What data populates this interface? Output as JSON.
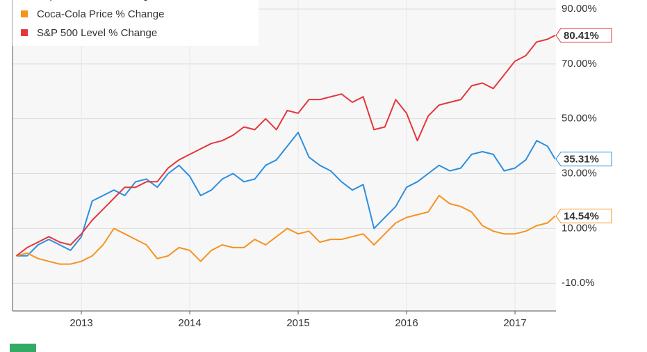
{
  "chart_data": {
    "type": "line",
    "x": [
      2012.4,
      2012.5,
      2012.6,
      2012.7,
      2012.8,
      2012.9,
      2013.0,
      2013.1,
      2013.2,
      2013.3,
      2013.4,
      2013.5,
      2013.6,
      2013.7,
      2013.8,
      2013.9,
      2014.0,
      2014.1,
      2014.2,
      2014.3,
      2014.4,
      2014.5,
      2014.6,
      2014.7,
      2014.8,
      2014.9,
      2015.0,
      2015.1,
      2015.2,
      2015.3,
      2015.4,
      2015.5,
      2015.6,
      2015.7,
      2015.8,
      2015.9,
      2016.0,
      2016.1,
      2016.2,
      2016.3,
      2016.4,
      2016.5,
      2016.6,
      2016.7,
      2016.8,
      2016.9,
      2017.0,
      2017.1,
      2017.2,
      2017.3,
      2017.37
    ],
    "series": [
      {
        "name": "PepsiCo Price % Change",
        "color": "#2b8fe0",
        "values": [
          0,
          0,
          4,
          6,
          4,
          2,
          7,
          20,
          22,
          24,
          22,
          27,
          28,
          25,
          30,
          33,
          29,
          22,
          24,
          28,
          30,
          27,
          28,
          33,
          35,
          40,
          45,
          36,
          33,
          31,
          27,
          24,
          26,
          10,
          14,
          18,
          25,
          27,
          30,
          33,
          31,
          32,
          37,
          38,
          37,
          31,
          32,
          35,
          42,
          40,
          35.31
        ],
        "value_labels": [
          null,
          null,
          null,
          null,
          null,
          null,
          null,
          null,
          null,
          null,
          null,
          null,
          null,
          null,
          null,
          null,
          null,
          null,
          null,
          null,
          null,
          null,
          null,
          null,
          null,
          null,
          null,
          null,
          null,
          null,
          null,
          null,
          null,
          null,
          null,
          null,
          null,
          null,
          null,
          null,
          null,
          null,
          null,
          null,
          null,
          null,
          null,
          null,
          null,
          null,
          "35.31%"
        ]
      },
      {
        "name": "Coca-Cola Price % Change",
        "color": "#f7921e",
        "values": [
          0,
          1,
          -1,
          -2,
          -3,
          -3,
          -2,
          0,
          4,
          10,
          8,
          6,
          4,
          -1,
          0,
          3,
          2,
          -2,
          2,
          4,
          3,
          3,
          6,
          4,
          7,
          10,
          8,
          9,
          5,
          6,
          6,
          7,
          8,
          4,
          8,
          12,
          14,
          15,
          16,
          22,
          19,
          18,
          16,
          11,
          9,
          8,
          8,
          9,
          11,
          12,
          14.54
        ],
        "value_labels": [
          null,
          null,
          null,
          null,
          null,
          null,
          null,
          null,
          null,
          null,
          null,
          null,
          null,
          null,
          null,
          null,
          null,
          null,
          null,
          null,
          null,
          null,
          null,
          null,
          null,
          null,
          null,
          null,
          null,
          null,
          null,
          null,
          null,
          null,
          null,
          null,
          null,
          null,
          null,
          null,
          null,
          null,
          null,
          null,
          null,
          null,
          null,
          null,
          null,
          null,
          "14.54%"
        ]
      },
      {
        "name": "S&P 500 Level % Change",
        "color": "#e4373c",
        "values": [
          0,
          3,
          5,
          7,
          5,
          4,
          8,
          13,
          17,
          21,
          25,
          25,
          27,
          27,
          32,
          35,
          37,
          39,
          41,
          42,
          44,
          47,
          46,
          50,
          46,
          53,
          52,
          57,
          57,
          58,
          59,
          56,
          58,
          46,
          47,
          57,
          52,
          42,
          51,
          55,
          56,
          57,
          62,
          63,
          61,
          66,
          71,
          73,
          78,
          79,
          80.41
        ],
        "value_labels": [
          null,
          null,
          null,
          null,
          null,
          null,
          null,
          null,
          null,
          null,
          null,
          null,
          null,
          null,
          null,
          null,
          null,
          null,
          null,
          null,
          null,
          null,
          null,
          null,
          null,
          null,
          null,
          null,
          null,
          null,
          null,
          null,
          null,
          null,
          null,
          null,
          null,
          null,
          null,
          null,
          null,
          null,
          null,
          null,
          null,
          null,
          null,
          null,
          null,
          null,
          "80.41%"
        ]
      }
    ],
    "xlim": [
      2012.365,
      2017.378
    ],
    "xticks": [
      2013,
      2014,
      2015,
      2016,
      2017
    ],
    "ylim": [
      -20.1,
      93.3
    ],
    "yticks": [
      {
        "value": -10,
        "label": "-10.0%"
      },
      {
        "value": 10,
        "label": "10.00%"
      },
      {
        "value": 30,
        "label": "30.00%"
      },
      {
        "value": 50,
        "label": "50.00%"
      },
      {
        "value": 70,
        "label": "70.00%"
      },
      {
        "value": 90,
        "label": "90.00%"
      }
    ],
    "grid": true
  }
}
